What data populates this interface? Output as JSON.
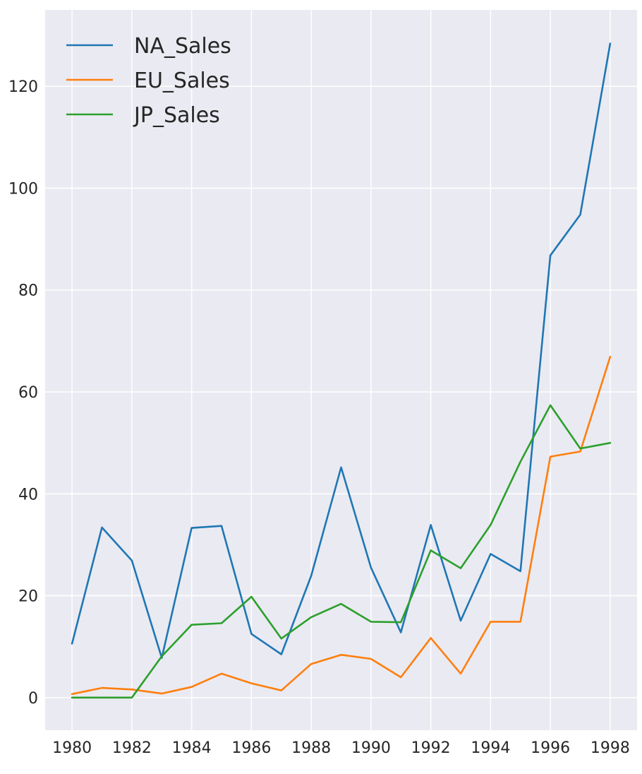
{
  "chart_data": {
    "type": "line",
    "title": "",
    "xlabel": "",
    "ylabel": "",
    "x": [
      1980,
      1981,
      1982,
      1983,
      1984,
      1985,
      1986,
      1987,
      1988,
      1989,
      1990,
      1991,
      1992,
      1993,
      1994,
      1995,
      1996,
      1997,
      1998
    ],
    "xlim": [
      1979.1,
      1998.9
    ],
    "ylim": [
      -6.4,
      135
    ],
    "xticks": [
      1980,
      1982,
      1984,
      1986,
      1988,
      1990,
      1992,
      1994,
      1996,
      1998
    ],
    "yticks": [
      0,
      20,
      40,
      60,
      80,
      100,
      120
    ],
    "grid": true,
    "legend_position": "top-left",
    "style": "seaborn-darkgrid",
    "series": [
      {
        "name": "NA_Sales",
        "color": "#1f77b4",
        "values": [
          10.6,
          33.4,
          26.9,
          7.8,
          33.3,
          33.7,
          12.5,
          8.5,
          23.9,
          45.2,
          25.5,
          12.8,
          33.9,
          15.1,
          28.2,
          24.8,
          86.8,
          94.8,
          128.4
        ]
      },
      {
        "name": "EU_Sales",
        "color": "#ff7f0e",
        "values": [
          0.7,
          1.9,
          1.6,
          0.8,
          2.1,
          4.7,
          2.8,
          1.4,
          6.6,
          8.4,
          7.6,
          4.0,
          11.7,
          4.7,
          14.9,
          14.9,
          47.3,
          48.3,
          66.9
        ]
      },
      {
        "name": "JP_Sales",
        "color": "#2ca02c",
        "values": [
          0.0,
          0.0,
          0.0,
          8.1,
          14.3,
          14.6,
          19.8,
          11.6,
          15.8,
          18.4,
          14.9,
          14.8,
          28.9,
          25.4,
          33.9,
          46.3,
          57.4,
          48.9,
          50.0
        ]
      }
    ]
  }
}
